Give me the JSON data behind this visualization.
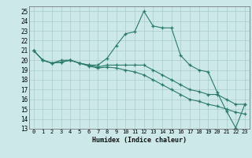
{
  "xlabel": "Humidex (Indice chaleur)",
  "xlim": [
    -0.5,
    23.5
  ],
  "ylim": [
    13,
    25.5
  ],
  "yticks": [
    13,
    14,
    15,
    16,
    17,
    18,
    19,
    20,
    21,
    22,
    23,
    24,
    25
  ],
  "xticks": [
    0,
    1,
    2,
    3,
    4,
    5,
    6,
    7,
    8,
    9,
    10,
    11,
    12,
    13,
    14,
    15,
    16,
    17,
    18,
    19,
    20,
    21,
    22,
    23
  ],
  "background_color": "#cce8e8",
  "grid_color": "#aacccc",
  "line_color": "#2a7a6a",
  "lines": [
    [
      21.0,
      20.0,
      19.7,
      20.0,
      20.0,
      19.7,
      19.5,
      19.5,
      20.2,
      21.5,
      22.7,
      22.9,
      25.0,
      23.5,
      23.3,
      23.3,
      20.5,
      19.5,
      19.0,
      18.8,
      16.7,
      14.8,
      13.1,
      15.5
    ],
    [
      21.0,
      20.0,
      19.7,
      19.8,
      20.0,
      19.7,
      19.5,
      19.3,
      19.5,
      19.5,
      19.5,
      19.5,
      19.5,
      19.0,
      18.5,
      18.0,
      17.5,
      17.0,
      16.8,
      16.5,
      16.5,
      16.0,
      15.5,
      15.5
    ],
    [
      21.0,
      20.0,
      19.7,
      19.8,
      20.0,
      19.7,
      19.4,
      19.2,
      19.3,
      19.2,
      19.0,
      18.8,
      18.5,
      18.0,
      17.5,
      17.0,
      16.5,
      16.0,
      15.8,
      15.5,
      15.3,
      15.0,
      14.7,
      14.5
    ]
  ]
}
